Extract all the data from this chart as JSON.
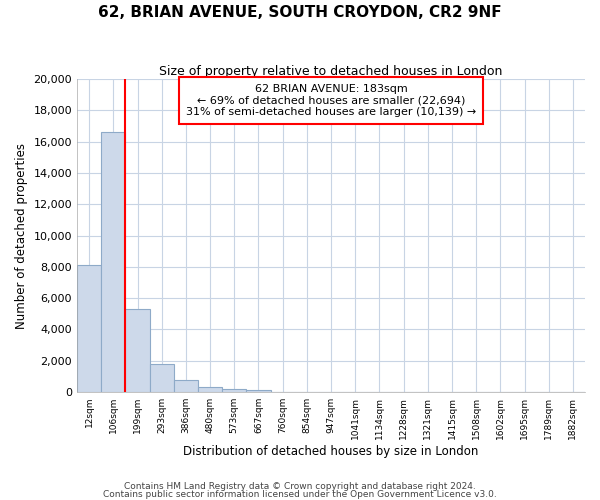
{
  "title": "62, BRIAN AVENUE, SOUTH CROYDON, CR2 9NF",
  "subtitle": "Size of property relative to detached houses in London",
  "xlabel": "Distribution of detached houses by size in London",
  "ylabel": "Number of detached properties",
  "bins": [
    "12sqm",
    "106sqm",
    "199sqm",
    "293sqm",
    "386sqm",
    "480sqm",
    "573sqm",
    "667sqm",
    "760sqm",
    "854sqm",
    "947sqm",
    "1041sqm",
    "1134sqm",
    "1228sqm",
    "1321sqm",
    "1415sqm",
    "1508sqm",
    "1602sqm",
    "1695sqm",
    "1789sqm",
    "1882sqm"
  ],
  "values": [
    8100,
    16600,
    5300,
    1800,
    750,
    300,
    170,
    130,
    0,
    0,
    0,
    0,
    0,
    0,
    0,
    0,
    0,
    0,
    0,
    0,
    0
  ],
  "bar_color": "#cdd9ea",
  "bar_edge_color": "#8eaac8",
  "red_line_bin_idx": 2,
  "annotation_line1": "62 BRIAN AVENUE: 183sqm",
  "annotation_line2": "← 69% of detached houses are smaller (22,694)",
  "annotation_line3": "31% of semi-detached houses are larger (10,139) →",
  "footer1": "Contains HM Land Registry data © Crown copyright and database right 2024.",
  "footer2": "Contains public sector information licensed under the Open Government Licence v3.0.",
  "ylim": [
    0,
    20000
  ],
  "yticks": [
    0,
    2000,
    4000,
    6000,
    8000,
    10000,
    12000,
    14000,
    16000,
    18000,
    20000
  ],
  "background_color": "#ffffff",
  "grid_color": "#c8d4e4"
}
